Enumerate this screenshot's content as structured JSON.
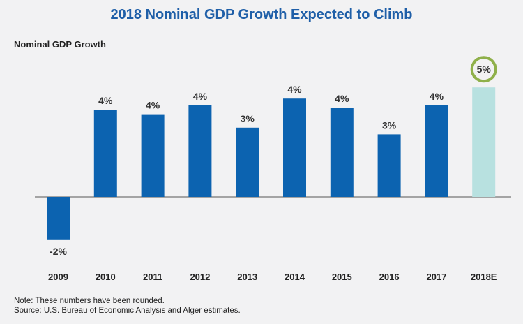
{
  "chart_data": {
    "type": "bar",
    "title": "2018 Nominal GDP Growth Expected to Climb",
    "ylabel": "Nominal GDP Growth",
    "xlabel": "",
    "categories": [
      "2009",
      "2010",
      "2011",
      "2012",
      "2013",
      "2014",
      "2015",
      "2016",
      "2017",
      "2018E"
    ],
    "values": [
      -1.9,
      3.9,
      3.7,
      4.1,
      3.1,
      4.4,
      4.0,
      2.8,
      4.1,
      4.9
    ],
    "data_labels": [
      "-2%",
      "4%",
      "4%",
      "4%",
      "3%",
      "4%",
      "4%",
      "3%",
      "4%",
      "5%"
    ],
    "ylim": [
      -2.5,
      5.5
    ],
    "grid": false,
    "colors": {
      "actual": "#0c63b0",
      "estimate": "#b8e1e0",
      "highlight_ring": "#8fb04a",
      "title": "#1f5fa8"
    },
    "highlight_category": "2018E"
  },
  "notes": {
    "line1": "Note: These numbers have been rounded.",
    "line2": "Source: U.S. Bureau of Economic Analysis and Alger estimates."
  }
}
